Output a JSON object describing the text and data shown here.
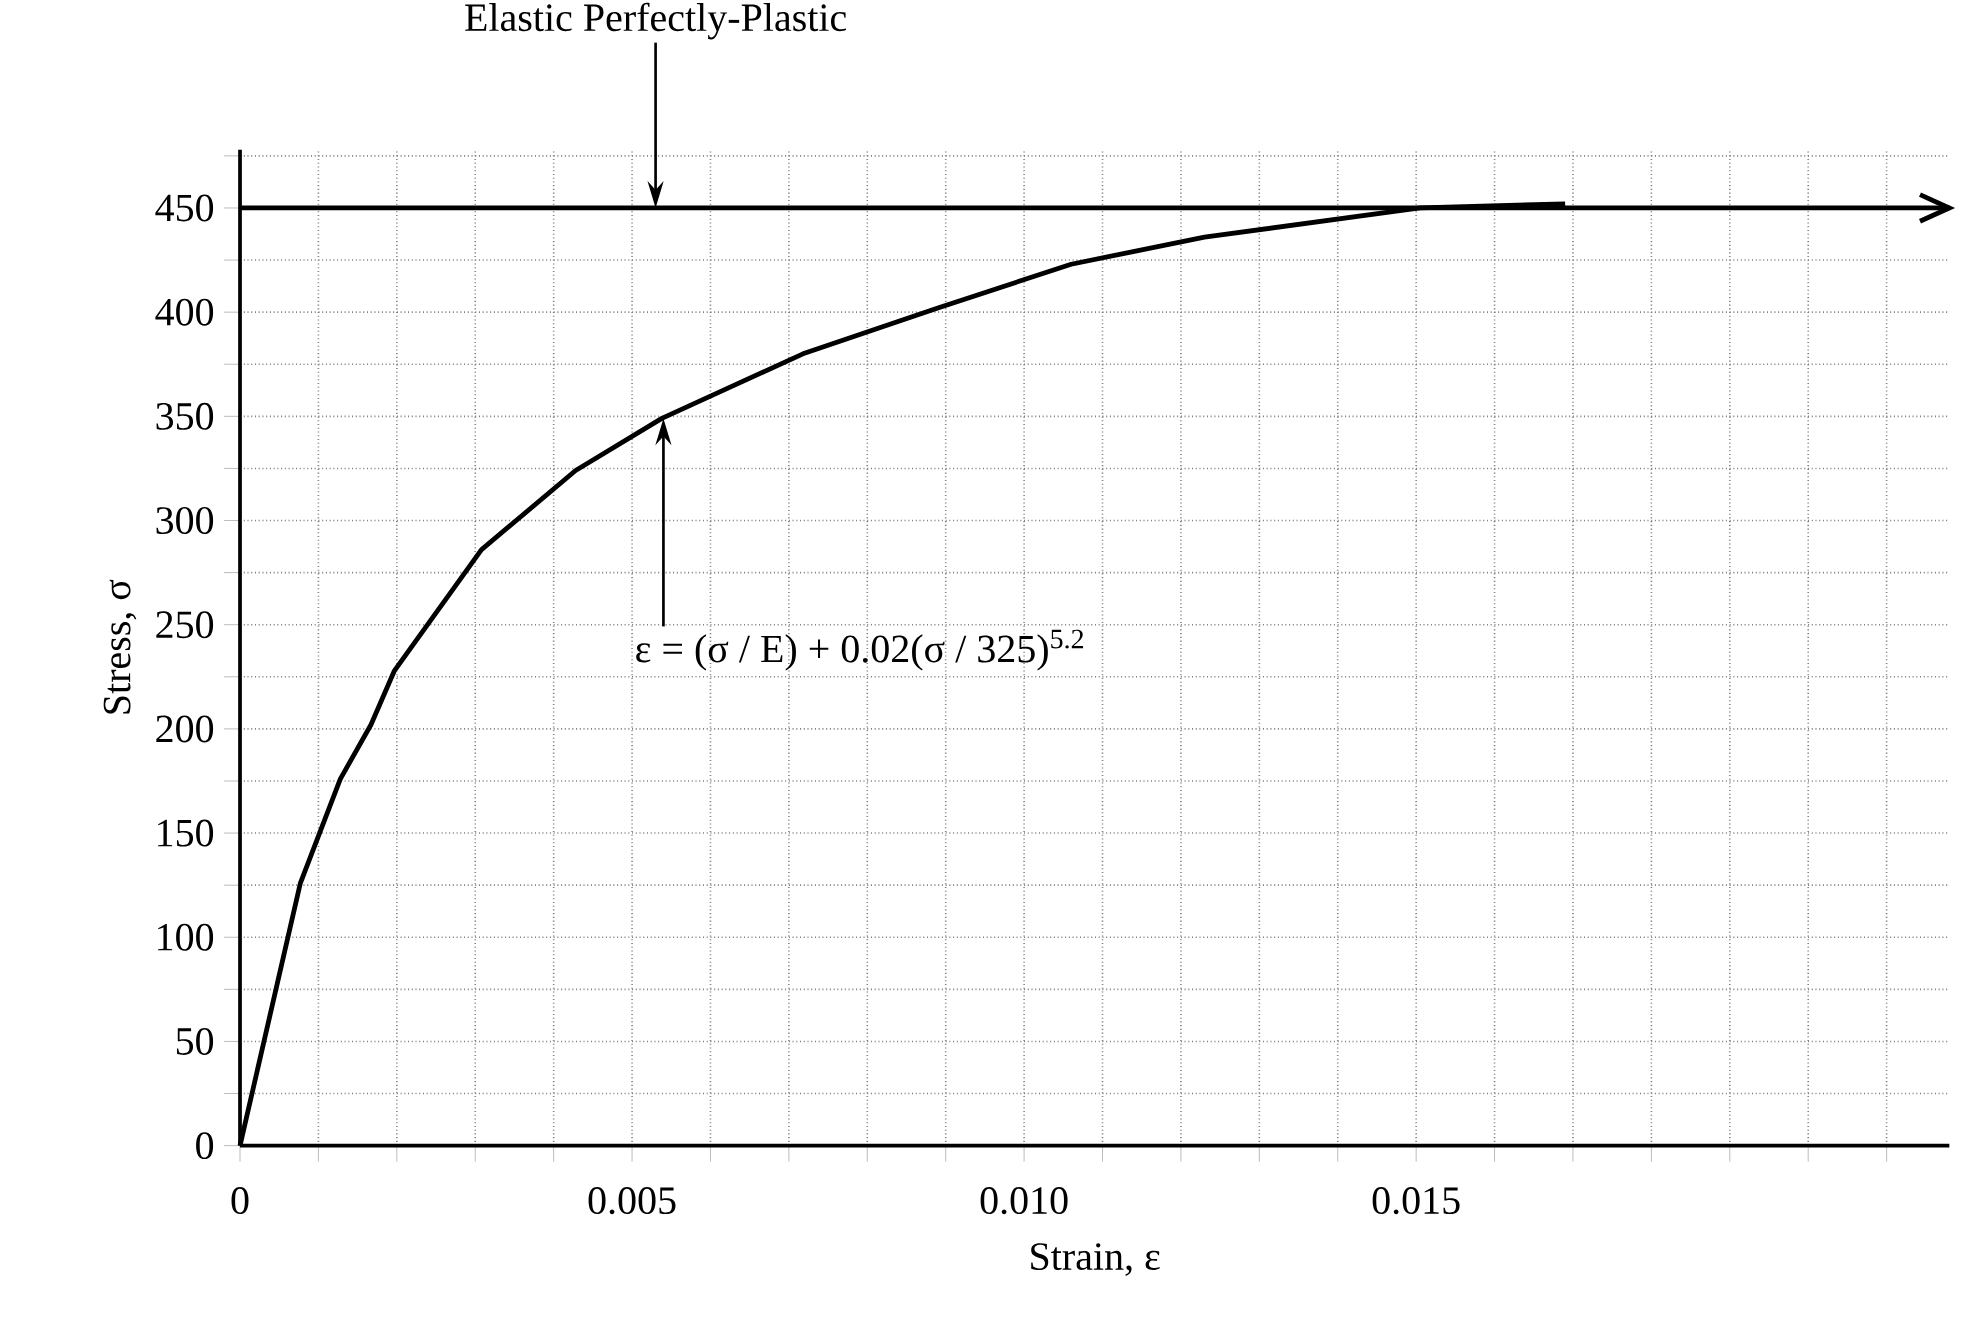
{
  "chart_data": {
    "type": "line",
    "xlabel": "Strain, ε",
    "ylabel": "Stress, σ",
    "series": [
      {
        "color": "#000000",
        "x": [
          0,
          0.00323,
          0.0218
        ],
        "values": [
          450,
          450,
          450
        ]
      },
      {
        "color": "#000000",
        "x": [
          0,
          0.00077,
          0.00128,
          0.00167,
          0.00197,
          0.00308,
          0.00428,
          0.00538,
          0.00718,
          0.0089,
          0.0106,
          0.0123,
          0.01505,
          0.0169
        ],
        "values": [
          0,
          126,
          176,
          202,
          228,
          286,
          324,
          349,
          380,
          402,
          423,
          436,
          450,
          452
        ]
      }
    ],
    "annotations": [
      {
        "text": "Elastic Perfectly-Plastic",
        "x": 0.0053,
        "y": 450
      },
      {
        "text": "ε = (σ / E) + 0.02(σ / 325)$^{5.2}$",
        "x": 0.0054,
        "y": 349
      }
    ],
    "xlim": [
      0,
      0.0218
    ],
    "ylim": [
      0,
      478
    ],
    "xticks": [
      {
        "value": 0,
        "label": "0"
      },
      {
        "value": 0.001,
        "label": null
      },
      {
        "value": 0.002,
        "label": null
      },
      {
        "value": 0.003,
        "label": null
      },
      {
        "value": 0.004,
        "label": null
      },
      {
        "value": 0.005,
        "label": "0.005"
      },
      {
        "value": 0.006,
        "label": null
      },
      {
        "value": 0.007,
        "label": null
      },
      {
        "value": 0.008,
        "label": null
      },
      {
        "value": 0.009,
        "label": null
      },
      {
        "value": 0.01,
        "label": "0.010"
      },
      {
        "value": 0.011,
        "label": null
      },
      {
        "value": 0.012,
        "label": null
      },
      {
        "value": 0.013,
        "label": null
      },
      {
        "value": 0.014,
        "label": null
      },
      {
        "value": 0.015,
        "label": "0.015"
      },
      {
        "value": 0.016,
        "label": null
      },
      {
        "value": 0.017,
        "label": null
      },
      {
        "value": 0.018,
        "label": null
      },
      {
        "value": 0.019,
        "label": null
      },
      {
        "value": 0.02,
        "label": null
      },
      {
        "value": 0.021,
        "label": null
      }
    ],
    "yticks": [
      0,
      {
        "value": 25,
        "label": null
      },
      50,
      {
        "value": 75,
        "label": null
      },
      100,
      {
        "value": 125,
        "label": null
      },
      150,
      {
        "value": 175,
        "label": null
      },
      200,
      {
        "value": 225,
        "label": null
      },
      250,
      {
        "value": 275,
        "label": null
      },
      300,
      {
        "value": 325,
        "label": null
      },
      350,
      {
        "value": 375,
        "label": null
      },
      400,
      {
        "value": 425,
        "label": null
      },
      450,
      {
        "value": 475,
        "label": null
      }
    ],
    "grid": true
  }
}
